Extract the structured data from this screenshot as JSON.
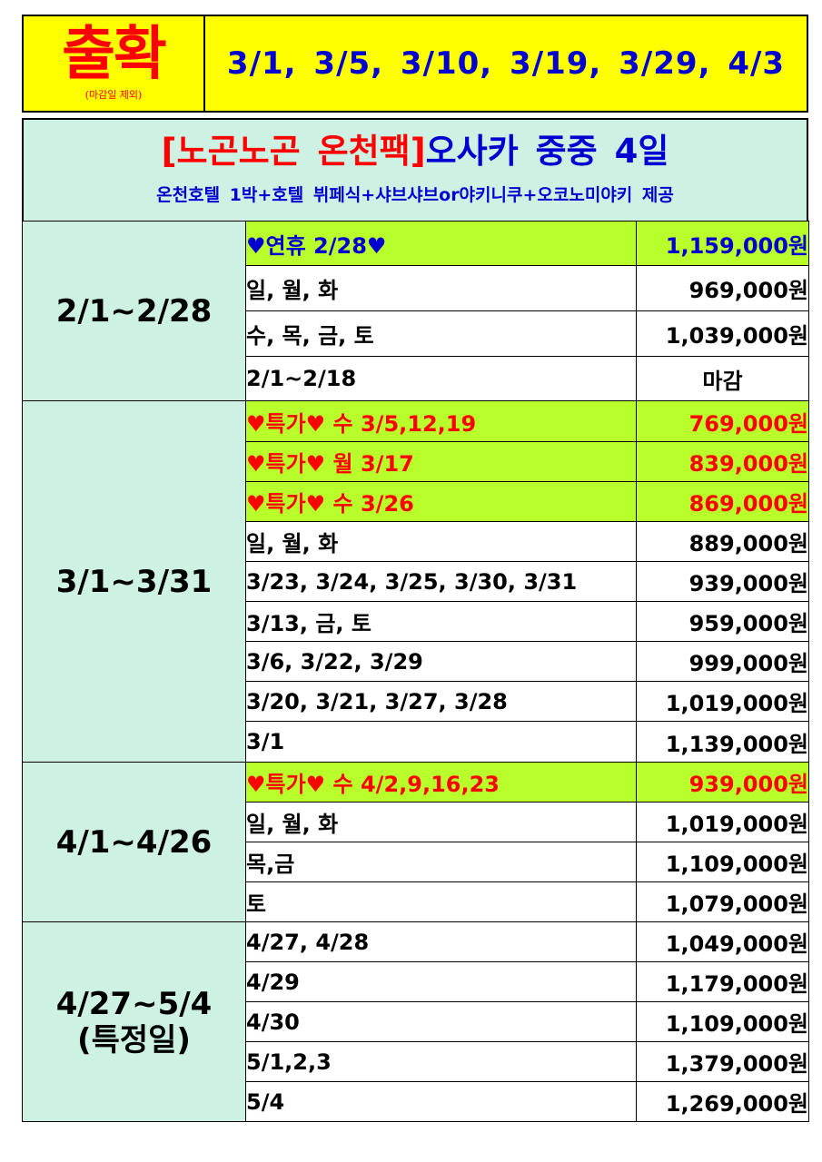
{
  "header": {
    "main": "출확",
    "note": "(마감일 제외)",
    "dates": "3/1,  3/5,  3/10,  3/19,  3/29,  4/3"
  },
  "title": {
    "bracket": "[노곤노곤 온천팩]",
    "rest": "오사카 중중 4일",
    "subtitle": "온천호텔 1박+호텔 뷔페식+샤브샤브or야키니쿠+오코노미야키 제공"
  },
  "colors": {
    "yellow": "#ffff00",
    "mint": "#cdf2e4",
    "lime": "#b8ff2c",
    "red": "#ff0000",
    "blue": "#0000d0"
  },
  "table": {
    "groups": [
      {
        "period": "2/1~2/28",
        "rows": [
          {
            "desc": "♥연휴 2/28♥",
            "price": "1,159,000원"
          },
          {
            "desc": "일, 월, 화",
            "price": "969,000원"
          },
          {
            "desc": "수, 목, 금, 토",
            "price": "1,039,000원"
          },
          {
            "desc": "2/1~2/18",
            "price": "마감"
          }
        ]
      },
      {
        "period": "3/1~3/31",
        "rows": [
          {
            "desc": "♥특가♥  수  3/5,12,19",
            "price": "769,000원"
          },
          {
            "desc": "♥특가♥  월  3/17",
            "price": "839,000원"
          },
          {
            "desc": "♥특가♥  수  3/26",
            "price": "869,000원"
          },
          {
            "desc": "일, 월, 화",
            "price": "889,000원"
          },
          {
            "desc": "3/23,  3/24,  3/25,  3/30,  3/31",
            "price": "939,000원"
          },
          {
            "desc": "3/13,  금,  토",
            "price": "959,000원"
          },
          {
            "desc": "3/6,  3/22,  3/29",
            "price": "999,000원"
          },
          {
            "desc": "3/20,  3/21,  3/27,  3/28",
            "price": "1,019,000원"
          },
          {
            "desc": "3/1",
            "price": "1,139,000원"
          }
        ]
      },
      {
        "period": "4/1~4/26",
        "rows": [
          {
            "desc": "♥특가♥  수  4/2,9,16,23",
            "price": "939,000원"
          },
          {
            "desc": "일, 월, 화",
            "price": "1,019,000원"
          },
          {
            "desc": "목,금",
            "price": "1,109,000원"
          },
          {
            "desc": "토",
            "price": "1,079,000원"
          }
        ]
      },
      {
        "period_line1": "4/27~5/4",
        "period_line2": "(특정일)",
        "rows": [
          {
            "desc": "4/27,  4/28",
            "price": "1,049,000원"
          },
          {
            "desc": "4/29",
            "price": "1,179,000원"
          },
          {
            "desc": "4/30",
            "price": "1,109,000원"
          },
          {
            "desc": "5/1,2,3",
            "price": "1,379,000원"
          },
          {
            "desc": "5/4",
            "price": "1,269,000원"
          }
        ]
      }
    ]
  }
}
